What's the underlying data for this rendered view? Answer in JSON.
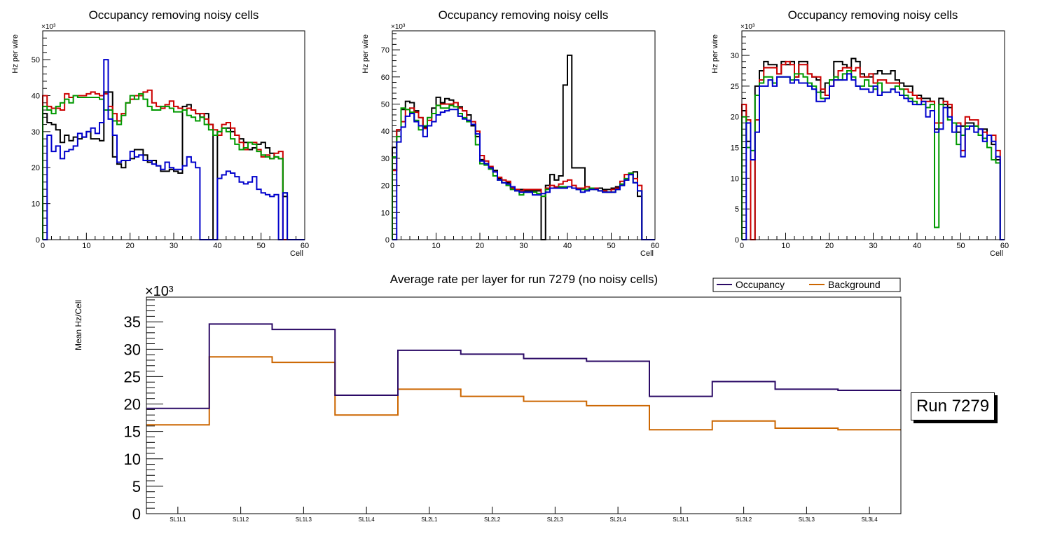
{
  "chart_data": [
    {
      "type": "line",
      "subtype": "step-histogram",
      "title": "Occupancy removing noisy cells",
      "xlabel": "Cell",
      "ylabel": "Hz per wire",
      "y_multiplier": "×10³",
      "xlim": [
        0,
        60
      ],
      "ylim": [
        0,
        58
      ],
      "xticks": [
        "0",
        "10",
        "20",
        "30",
        "40",
        "50",
        "60"
      ],
      "yticks": [
        "0",
        "10",
        "20",
        "30",
        "40",
        "50"
      ],
      "ytick_values": [
        0,
        10,
        20,
        30,
        40,
        50
      ],
      "series": [
        {
          "name": "black",
          "color": "#000000",
          "values": [
            35,
            32.5,
            32,
            30.5,
            27,
            29,
            27.5,
            28.5,
            28,
            28.5,
            30,
            28,
            28,
            27.5,
            41,
            41,
            23,
            21,
            20,
            22,
            22.5,
            25,
            25,
            23.5,
            21.5,
            22,
            20.5,
            19,
            19,
            19.5,
            19,
            18.5,
            37,
            37.5,
            36,
            35,
            34,
            35,
            32,
            0,
            30,
            31,
            31,
            30,
            29,
            28,
            27,
            25,
            25.5,
            26.5,
            27,
            25.5,
            24,
            23,
            22.5,
            12,
            0,
            0,
            0,
            0
          ]
        },
        {
          "name": "red",
          "color": "#cc0000",
          "values": [
            40,
            37,
            36.5,
            36.5,
            36,
            40.5,
            39.5,
            40,
            40,
            40,
            40.5,
            41,
            40.5,
            40,
            40.5,
            37,
            35,
            33,
            35,
            38,
            39,
            40,
            40,
            41,
            41.5,
            38,
            37,
            36.5,
            37.5,
            38.5,
            37,
            36.5,
            36,
            36.5,
            36,
            35,
            35,
            33.5,
            32,
            30.5,
            29,
            32,
            32.5,
            31,
            29,
            27,
            25,
            27,
            27,
            25,
            23,
            23.5,
            22.5,
            24,
            24.5,
            0,
            0,
            0,
            0,
            0
          ]
        },
        {
          "name": "green",
          "color": "#009900",
          "values": [
            37,
            36,
            35,
            37,
            38,
            39,
            38,
            40,
            39.5,
            39.5,
            39.5,
            39.5,
            39.5,
            39,
            36,
            36,
            33,
            32,
            34.5,
            38,
            40,
            39,
            40.5,
            39,
            37,
            36,
            36,
            37,
            37,
            36.5,
            35.5,
            35.5,
            36,
            34.5,
            34,
            33,
            34,
            32,
            30.5,
            29,
            30,
            31,
            30,
            28,
            26.5,
            25,
            25.5,
            27,
            26.5,
            24.5,
            23.5,
            23,
            22.5,
            23,
            22.5,
            13,
            0,
            0,
            0,
            0
          ]
        },
        {
          "name": "blue",
          "color": "#0000cc",
          "values": [
            0,
            29,
            24.5,
            26,
            22.5,
            24.5,
            25,
            26,
            29.5,
            28.5,
            30,
            31,
            29.5,
            32.5,
            50,
            33.5,
            29,
            21.5,
            22,
            22,
            24.5,
            23,
            23.5,
            22,
            22,
            21,
            20.5,
            19.5,
            21.5,
            20,
            19.5,
            19.5,
            20.5,
            23,
            21.5,
            20,
            0,
            0,
            0,
            0,
            17,
            18,
            19,
            18.5,
            17.5,
            16,
            15.5,
            16,
            17.5,
            14,
            13,
            12.5,
            12,
            12.5,
            0,
            13,
            0,
            0,
            0,
            0
          ]
        }
      ]
    },
    {
      "type": "line",
      "subtype": "step-histogram",
      "title": "Occupancy removing noisy cells",
      "xlabel": "Cell",
      "ylabel": "Hz per wire",
      "y_multiplier": "×10³",
      "xlim": [
        0,
        60
      ],
      "ylim": [
        0,
        77
      ],
      "xticks": [
        "0",
        "10",
        "20",
        "30",
        "40",
        "50",
        "60"
      ],
      "yticks": [
        "0",
        "10",
        "20",
        "30",
        "40",
        "50",
        "60",
        "70"
      ],
      "ytick_values": [
        0,
        10,
        20,
        30,
        40,
        50,
        60,
        70
      ],
      "series": [
        {
          "name": "black",
          "color": "#000000",
          "values": [
            34,
            40.5,
            48,
            51,
            50.5,
            47.5,
            45,
            41.5,
            45,
            48.5,
            52.5,
            50.5,
            52,
            51.5,
            50.5,
            49,
            47.5,
            46,
            42,
            38,
            29.5,
            28,
            26.5,
            25.5,
            22.5,
            21,
            21,
            19,
            18.5,
            18.5,
            18,
            18,
            18,
            18,
            0,
            20,
            24,
            22,
            23.5,
            57,
            68,
            26.5,
            26.5,
            26.5,
            19.5,
            19,
            19,
            19,
            18.5,
            18.5,
            19,
            19.5,
            20,
            22,
            24,
            25,
            16,
            0,
            0,
            0
          ]
        },
        {
          "name": "red",
          "color": "#cc0000",
          "values": [
            25.5,
            40.5,
            43.5,
            48,
            48.5,
            47,
            45,
            41,
            44,
            46.5,
            49.5,
            50,
            50,
            50,
            50.5,
            48.5,
            47.5,
            44,
            43.5,
            40,
            31,
            29,
            27,
            25,
            23,
            22,
            21.5,
            19,
            18.5,
            18,
            18.5,
            18.5,
            18.5,
            18.5,
            16,
            19,
            20,
            19.5,
            20.5,
            21.5,
            22,
            20,
            19,
            19,
            19.5,
            19,
            19,
            18,
            18,
            17.5,
            18.5,
            19,
            21.5,
            24,
            24.5,
            22.5,
            20,
            0,
            0,
            0
          ]
        },
        {
          "name": "green",
          "color": "#009900",
          "values": [
            30.5,
            38,
            48.5,
            48,
            47,
            44,
            40.5,
            42,
            45,
            46.5,
            49.5,
            48.5,
            48.5,
            49.5,
            49,
            46.5,
            45,
            43.5,
            42.5,
            35,
            28,
            27.5,
            26,
            23.5,
            22,
            21,
            20,
            18.5,
            18,
            16.5,
            17.5,
            17.5,
            17.5,
            17,
            16,
            18.5,
            19,
            19,
            19.5,
            19.5,
            19.5,
            19,
            18.5,
            18.5,
            18.5,
            19,
            18.5,
            18,
            17.5,
            17.5,
            17.5,
            18.5,
            20.5,
            22.5,
            24.5,
            21,
            18,
            0,
            0,
            0
          ]
        },
        {
          "name": "blue",
          "color": "#0000cc",
          "values": [
            0,
            36,
            41.5,
            45.5,
            46.5,
            43.5,
            42,
            38,
            42,
            43.5,
            46,
            47,
            47.5,
            48,
            48,
            45.5,
            44.5,
            44,
            42.5,
            39,
            29,
            28,
            26.5,
            25,
            22,
            21,
            20.5,
            19.5,
            18,
            17.5,
            17.5,
            17.5,
            16.5,
            16.5,
            17,
            17.5,
            19,
            19,
            19,
            19,
            19.5,
            19,
            18.5,
            17.5,
            18,
            18.5,
            18.5,
            18,
            17.5,
            17.5,
            17.5,
            18.5,
            20,
            22,
            24,
            21,
            18,
            0,
            0,
            0
          ]
        }
      ]
    },
    {
      "type": "line",
      "subtype": "step-histogram",
      "title": "Occupancy removing noisy cells",
      "xlabel": "Cell",
      "ylabel": "Hz per wire",
      "y_multiplier": "×10³",
      "xlim": [
        0,
        60
      ],
      "ylim": [
        0,
        34
      ],
      "xticks": [
        "0",
        "10",
        "20",
        "30",
        "40",
        "50",
        "60"
      ],
      "yticks": [
        "0",
        "5",
        "10",
        "15",
        "20",
        "25",
        "30"
      ],
      "ytick_values": [
        0,
        5,
        10,
        15,
        20,
        25,
        30
      ],
      "series": [
        {
          "name": "black",
          "color": "#000000",
          "values": [
            21,
            16,
            0,
            25,
            27.5,
            29,
            28.5,
            28.5,
            27,
            29,
            28.5,
            29,
            26.5,
            29,
            29,
            27,
            26.5,
            26,
            24,
            25.5,
            26,
            29,
            29,
            28.5,
            28,
            29.5,
            29,
            27,
            26.5,
            26.5,
            27,
            27.5,
            27,
            27,
            27.5,
            26,
            25.5,
            25,
            25,
            23.5,
            23.5,
            23,
            23,
            22.5,
            18,
            23,
            22,
            21.5,
            19,
            17.5,
            18.5,
            19,
            19,
            18.5,
            18,
            18,
            17,
            15.5,
            13,
            0
          ]
        },
        {
          "name": "red",
          "color": "#cc0000",
          "values": [
            22,
            19.5,
            0,
            19.5,
            26,
            28,
            28,
            28,
            27,
            28.5,
            29,
            28.5,
            26.5,
            28.5,
            28.5,
            27,
            26.5,
            26.5,
            24.5,
            23.5,
            25,
            26,
            27.5,
            28,
            28,
            27.5,
            28,
            26.5,
            26.5,
            27,
            25.5,
            26,
            26,
            25.5,
            25.5,
            25.5,
            24.5,
            24.5,
            24,
            23.5,
            23,
            22.5,
            22.5,
            22.5,
            19,
            19,
            22.5,
            22,
            19,
            19,
            14.5,
            20,
            19.5,
            19.5,
            18,
            17.5,
            17,
            17,
            14.5,
            0
          ]
        },
        {
          "name": "green",
          "color": "#009900",
          "values": [
            20,
            15,
            14.5,
            23.5,
            25.5,
            26.5,
            26.5,
            25.5,
            26.5,
            26.5,
            26.5,
            26,
            27,
            27,
            26.5,
            25.5,
            25,
            24,
            23,
            23,
            26,
            26.5,
            26,
            27,
            27.5,
            26.5,
            25,
            25,
            26,
            25,
            24.5,
            25.5,
            24,
            24,
            24.5,
            25,
            24.5,
            23.5,
            23,
            22.5,
            22,
            22,
            21.5,
            22,
            2,
            22,
            21.5,
            19.5,
            19,
            15.5,
            17,
            18.5,
            18.5,
            18.5,
            17,
            16.5,
            15,
            13,
            12.5,
            0
          ]
        },
        {
          "name": "blue",
          "color": "#0000cc",
          "values": [
            0,
            19,
            13,
            17.5,
            25,
            25,
            26,
            25,
            26.5,
            26.5,
            26.5,
            25.5,
            26,
            25.5,
            25.5,
            25,
            24.5,
            22.5,
            22.5,
            23,
            25,
            26,
            26,
            26,
            27,
            26,
            25,
            24.5,
            24.5,
            24,
            25,
            23.5,
            24,
            24,
            24.5,
            24,
            23.5,
            23,
            22.5,
            22,
            22,
            22.5,
            20,
            21,
            17.5,
            18,
            21.5,
            20,
            17.5,
            18.5,
            13.5,
            18,
            18.5,
            17.5,
            18,
            16,
            17,
            16,
            13.5,
            0
          ]
        }
      ]
    },
    {
      "type": "line",
      "subtype": "step-histogram",
      "title": "Average rate per layer for run 7279 (no noisy cells)",
      "xlabel": "",
      "ylabel": "Mean Hz/Cell",
      "y_multiplier": "×10³",
      "categories": [
        "SL1L1",
        "SL1L2",
        "SL1L3",
        "SL1L4",
        "SL2L1",
        "SL2L2",
        "SL2L3",
        "SL2L4",
        "SL3L1",
        "SL3L2",
        "SL3L3",
        "SL3L4"
      ],
      "ylim": [
        0,
        39.5
      ],
      "yticks": [
        "0",
        "5",
        "10",
        "15",
        "20",
        "25",
        "30",
        "35"
      ],
      "ytick_values": [
        0,
        5,
        10,
        15,
        20,
        25,
        30,
        35
      ],
      "legend": {
        "placement": "top-right",
        "entries": [
          "Occupancy",
          "Background"
        ]
      },
      "series": [
        {
          "name": "Occupancy",
          "color": "#2b0a66",
          "values": [
            19.2,
            34.6,
            33.6,
            21.6,
            29.8,
            29.1,
            28.3,
            27.8,
            21.4,
            24.1,
            22.7,
            22.5
          ]
        },
        {
          "name": "Background",
          "color": "#cc6600",
          "values": [
            16.2,
            28.6,
            27.6,
            18.0,
            22.7,
            21.4,
            20.5,
            19.7,
            15.3,
            16.9,
            15.6,
            15.3
          ]
        }
      ]
    }
  ],
  "annotation": {
    "run_label": "Run 7279"
  }
}
